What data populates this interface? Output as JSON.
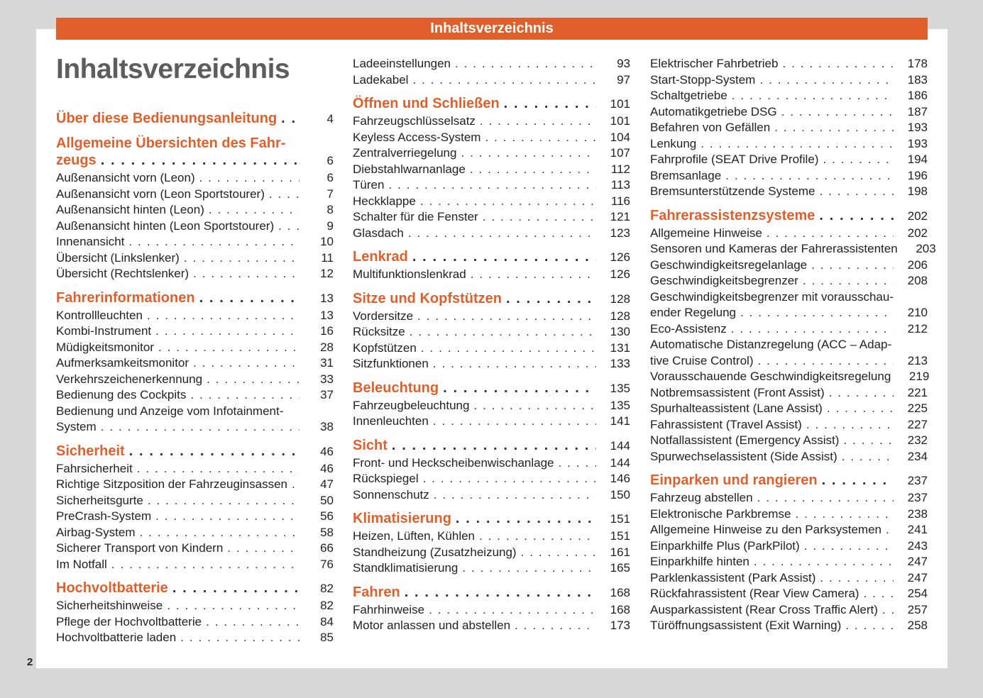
{
  "header_bar": "Inhaltsverzeichnis",
  "title": "Inhaltsverzeichnis",
  "page_number": "2",
  "accent_color": "#e05f2a",
  "columns": [
    [
      {
        "h": true,
        "lines": [
          "Über diese Bedienungsanleitung"
        ],
        "page": "4"
      },
      {
        "h": true,
        "lines": [
          "Allgemeine Übersichten des Fahr-",
          "zeugs"
        ],
        "page": "6"
      },
      {
        "lines": [
          "Außenansicht vorn (Leon)"
        ],
        "page": "6"
      },
      {
        "lines": [
          "Außenansicht vorn (Leon Sportstourer)"
        ],
        "page": "7"
      },
      {
        "lines": [
          "Außenansicht hinten (Leon)"
        ],
        "page": "8"
      },
      {
        "lines": [
          "Außenansicht hinten (Leon Sportstourer)"
        ],
        "page": "9"
      },
      {
        "lines": [
          "Innenansicht"
        ],
        "page": "10"
      },
      {
        "lines": [
          "Übersicht (Linkslenker)"
        ],
        "page": "11"
      },
      {
        "lines": [
          "Übersicht (Rechtslenker)"
        ],
        "page": "12"
      },
      {
        "h": true,
        "lines": [
          "Fahrerinformationen"
        ],
        "page": "13"
      },
      {
        "lines": [
          "Kontrollleuchten"
        ],
        "page": "13"
      },
      {
        "lines": [
          "Kombi-Instrument"
        ],
        "page": "16"
      },
      {
        "lines": [
          "Müdigkeitsmonitor"
        ],
        "page": "28"
      },
      {
        "lines": [
          "Aufmerksamkeitsmonitor"
        ],
        "page": "31"
      },
      {
        "lines": [
          "Verkehrszeichenerkennung"
        ],
        "page": "33"
      },
      {
        "lines": [
          "Bedienung des Cockpits"
        ],
        "page": "37"
      },
      {
        "lines": [
          "Bedienung und Anzeige vom Infotainment-",
          "System"
        ],
        "page": "38"
      },
      {
        "h": true,
        "lines": [
          "Sicherheit"
        ],
        "page": "46"
      },
      {
        "lines": [
          "Fahrsicherheit"
        ],
        "page": "46"
      },
      {
        "lines": [
          "Richtige Sitzposition der Fahrzeuginsassen"
        ],
        "page": "47"
      },
      {
        "lines": [
          "Sicherheitsgurte"
        ],
        "page": "50"
      },
      {
        "lines": [
          "PreCrash-System"
        ],
        "page": "56"
      },
      {
        "lines": [
          "Airbag-System"
        ],
        "page": "58"
      },
      {
        "lines": [
          "Sicherer Transport von Kindern"
        ],
        "page": "66"
      },
      {
        "lines": [
          "Im Notfall"
        ],
        "page": "76"
      },
      {
        "h": true,
        "lines": [
          "Hochvoltbatterie"
        ],
        "page": "82"
      },
      {
        "lines": [
          "Sicherheitshinweise"
        ],
        "page": "82"
      },
      {
        "lines": [
          "Pflege der Hochvoltbatterie"
        ],
        "page": "84"
      },
      {
        "lines": [
          "Hochvoltbatterie laden"
        ],
        "page": "85"
      }
    ],
    [
      {
        "lines": [
          "Ladeeinstellungen"
        ],
        "page": "93"
      },
      {
        "lines": [
          "Ladekabel"
        ],
        "page": "97"
      },
      {
        "h": true,
        "lines": [
          "Öffnen und Schließen"
        ],
        "page": "101"
      },
      {
        "lines": [
          "Fahrzeugschlüsselsatz"
        ],
        "page": "101"
      },
      {
        "lines": [
          "Keyless Access-System"
        ],
        "page": "104"
      },
      {
        "lines": [
          "Zentralverriegelung"
        ],
        "page": "107"
      },
      {
        "lines": [
          "Diebstahlwarnanlage"
        ],
        "page": "112"
      },
      {
        "lines": [
          "Türen"
        ],
        "page": "113"
      },
      {
        "lines": [
          "Heckklappe"
        ],
        "page": "116"
      },
      {
        "lines": [
          "Schalter für die Fenster"
        ],
        "page": "121"
      },
      {
        "lines": [
          "Glasdach"
        ],
        "page": "123"
      },
      {
        "h": true,
        "lines": [
          "Lenkrad"
        ],
        "page": "126"
      },
      {
        "lines": [
          "Multifunktionslenkrad"
        ],
        "page": "126"
      },
      {
        "h": true,
        "lines": [
          "Sitze und Kopfstützen"
        ],
        "page": "128"
      },
      {
        "lines": [
          "Vordersitze"
        ],
        "page": "128"
      },
      {
        "lines": [
          "Rücksitze"
        ],
        "page": "130"
      },
      {
        "lines": [
          "Kopfstützen"
        ],
        "page": "131"
      },
      {
        "lines": [
          "Sitzfunktionen"
        ],
        "page": "133"
      },
      {
        "h": true,
        "lines": [
          "Beleuchtung"
        ],
        "page": "135"
      },
      {
        "lines": [
          "Fahrzeugbeleuchtung"
        ],
        "page": "135"
      },
      {
        "lines": [
          "Innenleuchten"
        ],
        "page": "141"
      },
      {
        "h": true,
        "lines": [
          "Sicht"
        ],
        "page": "144"
      },
      {
        "lines": [
          "Front- und Heckscheibenwischanlage"
        ],
        "page": "144"
      },
      {
        "lines": [
          "Rückspiegel"
        ],
        "page": "146"
      },
      {
        "lines": [
          "Sonnenschutz"
        ],
        "page": "150"
      },
      {
        "h": true,
        "lines": [
          "Klimatisierung"
        ],
        "page": "151"
      },
      {
        "lines": [
          "Heizen, Lüften, Kühlen"
        ],
        "page": "151"
      },
      {
        "lines": [
          "Standheizung (Zusatzheizung)"
        ],
        "page": "161"
      },
      {
        "lines": [
          "Standklimatisierung"
        ],
        "page": "165"
      },
      {
        "h": true,
        "lines": [
          "Fahren"
        ],
        "page": "168"
      },
      {
        "lines": [
          "Fahrhinweise"
        ],
        "page": "168"
      },
      {
        "lines": [
          "Motor anlassen und abstellen"
        ],
        "page": "173"
      }
    ],
    [
      {
        "lines": [
          "Elektrischer Fahrbetrieb"
        ],
        "page": "178"
      },
      {
        "lines": [
          "Start-Stopp-System"
        ],
        "page": "183"
      },
      {
        "lines": [
          "Schaltgetriebe"
        ],
        "page": "186"
      },
      {
        "lines": [
          "Automatikgetriebe DSG"
        ],
        "page": "187"
      },
      {
        "lines": [
          "Befahren von Gefällen"
        ],
        "page": "193"
      },
      {
        "lines": [
          "Lenkung"
        ],
        "page": "193"
      },
      {
        "lines": [
          "Fahrprofile (SEAT Drive Profile)"
        ],
        "page": "194"
      },
      {
        "lines": [
          "Bremsanlage"
        ],
        "page": "196"
      },
      {
        "lines": [
          "Bremsunterstützende Systeme"
        ],
        "page": "198"
      },
      {
        "h": true,
        "lines": [
          "Fahrerassistenzsysteme"
        ],
        "page": "202"
      },
      {
        "lines": [
          "Allgemeine Hinweise"
        ],
        "page": "202"
      },
      {
        "lines": [
          "Sensoren und Kameras der Fahrerassistenten"
        ],
        "page": "203"
      },
      {
        "lines": [
          "Geschwindigkeitsregelanlage"
        ],
        "page": "206"
      },
      {
        "lines": [
          "Geschwindigkeitsbegrenzer"
        ],
        "page": "208"
      },
      {
        "lines": [
          "Geschwindigkeitsbegrenzer mit vorausschau-",
          "ender Regelung"
        ],
        "page": "210"
      },
      {
        "lines": [
          "Eco-Assistenz"
        ],
        "page": "212"
      },
      {
        "lines": [
          "Automatische Distanzregelung (ACC – Adap-",
          "tive Cruise Control)"
        ],
        "page": "213"
      },
      {
        "lines": [
          "Vorausschauende Geschwindigkeitsregelung"
        ],
        "page": "219"
      },
      {
        "lines": [
          "Notbremsassistent (Front Assist)"
        ],
        "page": "221"
      },
      {
        "lines": [
          "Spurhalteassistent (Lane Assist)"
        ],
        "page": "225"
      },
      {
        "lines": [
          "Fahrassistent (Travel Assist)"
        ],
        "page": "227"
      },
      {
        "lines": [
          "Notfallassistent (Emergency Assist)"
        ],
        "page": "232"
      },
      {
        "lines": [
          "Spurwechselassistent (Side Assist)"
        ],
        "page": "234"
      },
      {
        "h": true,
        "lines": [
          "Einparken und rangieren"
        ],
        "page": "237"
      },
      {
        "lines": [
          "Fahrzeug abstellen"
        ],
        "page": "237"
      },
      {
        "lines": [
          "Elektronische Parkbremse"
        ],
        "page": "238"
      },
      {
        "lines": [
          "Allgemeine Hinweise zu den Parksystemen"
        ],
        "page": "241"
      },
      {
        "lines": [
          "Einparkhilfe Plus (ParkPilot)"
        ],
        "page": "243"
      },
      {
        "lines": [
          "Einparkhilfe hinten"
        ],
        "page": "247"
      },
      {
        "lines": [
          "Parklenkassistent (Park Assist)"
        ],
        "page": "247"
      },
      {
        "lines": [
          "Rückfahrassistent (Rear View Camera)"
        ],
        "page": "254"
      },
      {
        "lines": [
          "Ausparkassistent (Rear Cross Traffic Alert)"
        ],
        "page": "257"
      },
      {
        "lines": [
          "Türöffnungsassistent (Exit Warning)"
        ],
        "page": "258"
      }
    ]
  ]
}
